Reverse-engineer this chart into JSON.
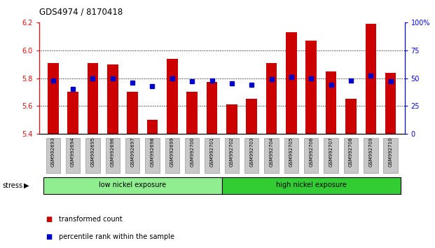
{
  "title": "GDS4974 / 8170418",
  "samples": [
    "GSM992693",
    "GSM992694",
    "GSM992695",
    "GSM992696",
    "GSM992697",
    "GSM992698",
    "GSM992699",
    "GSM992700",
    "GSM992701",
    "GSM992702",
    "GSM992703",
    "GSM992704",
    "GSM992705",
    "GSM992706",
    "GSM992707",
    "GSM992708",
    "GSM992709",
    "GSM992710"
  ],
  "red_values": [
    5.91,
    5.7,
    5.91,
    5.9,
    5.7,
    5.5,
    5.94,
    5.7,
    5.77,
    5.61,
    5.65,
    5.91,
    6.13,
    6.07,
    5.85,
    5.65,
    6.19,
    5.84
  ],
  "blue_values": [
    48,
    40,
    50,
    50,
    46,
    43,
    50,
    47,
    48,
    45,
    44,
    49,
    51,
    50,
    44,
    48,
    52,
    47
  ],
  "groups": [
    {
      "label": "low nickel exposure",
      "start": 0,
      "end": 9,
      "color": "#90EE90"
    },
    {
      "label": "high nickel exposure",
      "start": 9,
      "end": 18,
      "color": "#32CD32"
    }
  ],
  "stress_label": "stress",
  "ylim_left": [
    5.4,
    6.2
  ],
  "ylim_right": [
    0,
    100
  ],
  "yticks_left": [
    5.4,
    5.6,
    5.8,
    6.0,
    6.2
  ],
  "yticks_right": [
    0,
    25,
    50,
    75,
    100
  ],
  "ytick_labels_right": [
    "0",
    "25",
    "50",
    "75",
    "100%"
  ],
  "hlines": [
    5.6,
    5.8,
    6.0
  ],
  "bar_color": "#CC0000",
  "dot_color": "#0000CC",
  "bar_width": 0.55,
  "background_xtick": "#C8C8C8",
  "legend_items": [
    {
      "label": "transformed count",
      "color": "#CC0000"
    },
    {
      "label": "percentile rank within the sample",
      "color": "#0000CC"
    }
  ]
}
